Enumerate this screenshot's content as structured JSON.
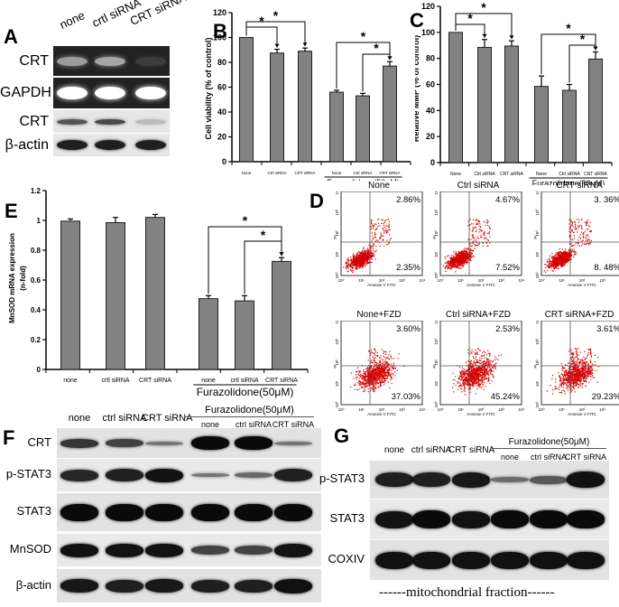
{
  "panels": {
    "A": {
      "letter": "A",
      "lanes": [
        "none",
        "crtl siRNA",
        "CRT siRNA"
      ],
      "rows": [
        {
          "label": "CRT",
          "style": "dark",
          "intensities": [
            0.55,
            0.6,
            0.12
          ]
        },
        {
          "label": "GAPDH",
          "style": "dark",
          "intensities": [
            1.0,
            1.0,
            1.0
          ]
        },
        {
          "label": "CRT",
          "style": "light",
          "intensities": [
            0.7,
            0.75,
            0.2
          ]
        },
        {
          "label": "β-actin",
          "style": "light",
          "intensities": [
            0.95,
            0.95,
            0.95
          ]
        }
      ]
    },
    "B": {
      "letter": "B"
    },
    "C": {
      "letter": "C"
    },
    "D": {
      "letter": "D",
      "xlabel": "Annexin V FITC",
      "ylabel": "PI",
      "plots": [
        {
          "title": "None",
          "ur": "2.86%",
          "lr": "2.35%"
        },
        {
          "title": "Ctrl siRNA",
          "ur": "4.67%",
          "lr": "7.52%"
        },
        {
          "title": "CRT siRNA",
          "ur": "3. 36%",
          "lr": "8. 48%"
        },
        {
          "title": "None+FZD",
          "ur": "3.60%",
          "lr": "37.03%"
        },
        {
          "title": "Ctrl siRNA+FZD",
          "ur": "2.53%",
          "lr": "45.24%"
        },
        {
          "title": "CRT siRNA+FZD",
          "ur": "3.61%",
          "lr": "29.23%"
        }
      ],
      "ticks": [
        "10⁰",
        "10¹",
        "10²",
        "10³",
        "10⁴"
      ]
    },
    "E": {
      "letter": "E"
    },
    "F": {
      "letter": "F",
      "lanes_top": [
        "none",
        "ctrl siRNA",
        "CRT siRNA"
      ],
      "group_label": "Furazolidone(50μM)",
      "lanes_sub": [
        "none",
        "ctrl siRNA",
        "CRT siRNA"
      ],
      "rows": [
        {
          "label": "CRT",
          "intensities": [
            0.7,
            0.6,
            0.25,
            1.0,
            1.0,
            0.25
          ]
        },
        {
          "label": "p-STAT3",
          "intensities": [
            0.8,
            0.85,
            0.95,
            0.25,
            0.35,
            0.85
          ]
        },
        {
          "label": "STAT3",
          "intensities": [
            1.0,
            1.0,
            1.0,
            1.0,
            1.0,
            1.0
          ]
        },
        {
          "label": "MnSOD",
          "intensities": [
            0.95,
            0.95,
            0.95,
            0.6,
            0.6,
            0.95
          ]
        },
        {
          "label": "β-actin",
          "intensities": [
            0.9,
            0.85,
            0.9,
            0.85,
            0.85,
            0.95
          ]
        }
      ]
    },
    "G": {
      "letter": "G",
      "lanes_top": [
        "none",
        "ctrl siRNA",
        "CRT siRNA"
      ],
      "group_label": "Furazolidone(50μM)",
      "lanes_sub": [
        "none",
        "ctrl siRNA",
        "CRT siRNA"
      ],
      "rows": [
        {
          "label": "p-STAT3",
          "intensities": [
            0.85,
            0.85,
            0.9,
            0.3,
            0.45,
            0.95
          ]
        },
        {
          "label": "STAT3",
          "intensities": [
            0.95,
            1.0,
            0.95,
            1.0,
            1.0,
            1.0
          ]
        },
        {
          "label": "COXIV",
          "intensities": [
            0.95,
            0.95,
            0.95,
            0.95,
            0.95,
            0.95
          ]
        }
      ],
      "footer": "------mitochondrial fraction------"
    }
  },
  "chart_data": [
    {
      "id": "B",
      "type": "bar",
      "title": "",
      "xlabel": "",
      "ylabel": "Cell viability (% of control)",
      "categories": [
        "None",
        "Ctrl siRNA",
        "CRT siRNA",
        "None",
        "Ctrl siRNA",
        "CRT siRNA"
      ],
      "group_label": "Furazolidone(50uM)",
      "group_span": [
        3,
        5
      ],
      "values": [
        100,
        87.5,
        89,
        56,
        53,
        77
      ],
      "errors": [
        0,
        3,
        2.5,
        1.5,
        2,
        3.5
      ],
      "ylim": [
        0,
        120
      ],
      "yticks": [
        0,
        20,
        40,
        60,
        80,
        100,
        120
      ],
      "significance": [
        {
          "from": 0,
          "to": 1,
          "level": 1,
          "label": "*"
        },
        {
          "from": 0,
          "to": 2,
          "level": 2,
          "label": "*"
        },
        {
          "from": 3,
          "to": 5,
          "level": 2,
          "label": "*"
        },
        {
          "from": 4,
          "to": 5,
          "level": 1,
          "label": "*"
        }
      ]
    },
    {
      "id": "C",
      "type": "bar",
      "title": "",
      "xlabel": "",
      "ylabel": "Relative MMP (% of control)",
      "categories": [
        "None",
        "Ctrl siRNA",
        "CRT siRNA",
        "None",
        "Ctrl siRNA",
        "CRT siRNA"
      ],
      "group_label": "Furazolidone(50μM)",
      "group_span": [
        3,
        5
      ],
      "values": [
        100,
        88.5,
        89.5,
        58.5,
        55.5,
        79.5
      ],
      "errors": [
        0,
        6,
        4,
        8,
        4.5,
        5.5
      ],
      "ylim": [
        0,
        120
      ],
      "yticks": [
        0,
        20,
        40,
        60,
        80,
        100,
        120
      ],
      "significance": [
        {
          "from": 0,
          "to": 1,
          "level": 1,
          "label": "*"
        },
        {
          "from": 0,
          "to": 2,
          "level": 2,
          "label": "*"
        },
        {
          "from": 3,
          "to": 5,
          "level": 2,
          "label": "*"
        },
        {
          "from": 4,
          "to": 5,
          "level": 1,
          "label": "*"
        }
      ]
    },
    {
      "id": "E",
      "type": "bar",
      "title": "",
      "xlabel": "",
      "ylabel": "MnSOD mRNA expression (n-fold)",
      "categories": [
        "none",
        "crtl siRNA",
        "CRT siRNA",
        "none",
        "crtl siRNA",
        "CRT siRNA"
      ],
      "group_label": "Furazolidone(50μM)",
      "group_span": [
        3,
        5
      ],
      "values": [
        0.995,
        0.985,
        1.02,
        0.475,
        0.46,
        0.725
      ],
      "errors": [
        0.015,
        0.035,
        0.02,
        0.02,
        0.035,
        0.025
      ],
      "ylim": [
        0,
        1.2
      ],
      "yticks": [
        0,
        0.2,
        0.4,
        0.6,
        0.8,
        1,
        1.2
      ],
      "significance": [
        {
          "from": 3,
          "to": 5,
          "level": 2,
          "label": "*"
        },
        {
          "from": 4,
          "to": 5,
          "level": 1,
          "label": "*"
        }
      ]
    }
  ]
}
